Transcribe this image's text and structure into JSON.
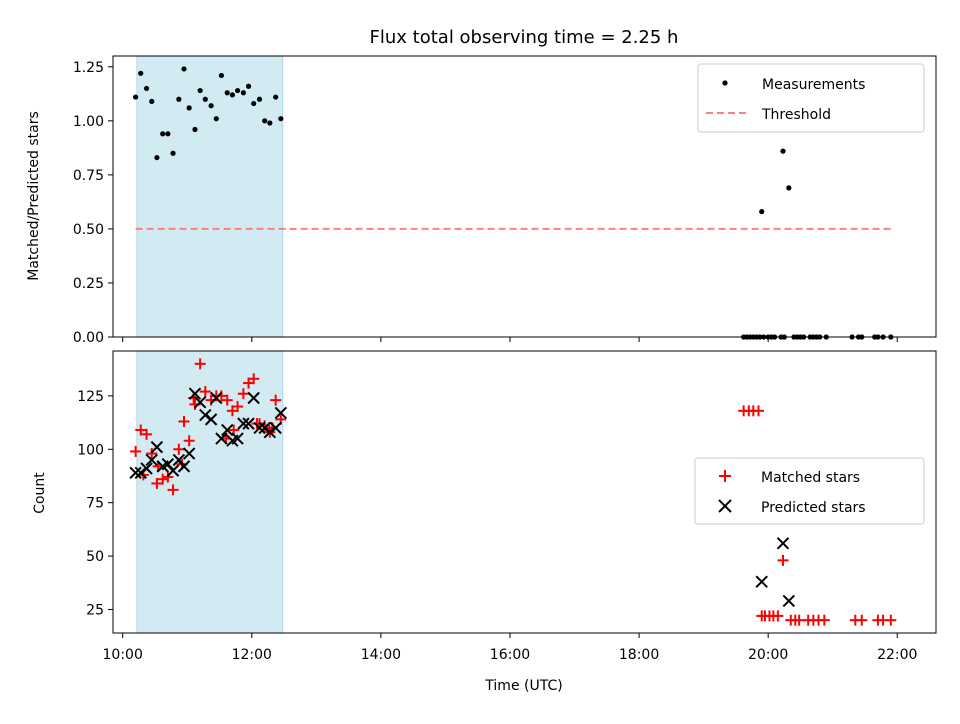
{
  "chart_data": [
    {
      "type": "scatter",
      "title": "Flux total observing time = 2.25 h",
      "xlabel": "",
      "ylabel": "Matched/Predicted stars",
      "ylim": [
        0,
        1.3
      ],
      "yticks": [
        "0.00",
        "0.25",
        "0.50",
        "0.75",
        "1.00",
        "1.25"
      ],
      "ytick_values": [
        0,
        0.25,
        0.5,
        0.75,
        1.0,
        1.25
      ],
      "xlim_hours": [
        9.85,
        22.6
      ],
      "shaded_span_hours": [
        10.22,
        12.48
      ],
      "shade_color": "#add8e6",
      "legend_position": "upper right",
      "series": [
        {
          "name": "Measurements",
          "marker": "dot",
          "color": "#000000",
          "x_hours": [
            10.2,
            10.28,
            10.37,
            10.45,
            10.53,
            10.62,
            10.7,
            10.78,
            10.87,
            10.95,
            11.03,
            11.12,
            11.2,
            11.28,
            11.37,
            11.45,
            11.53,
            11.62,
            11.7,
            11.78,
            11.87,
            11.95,
            12.03,
            12.12,
            12.2,
            12.28,
            12.37,
            12.45,
            19.9,
            20.23,
            20.32,
            19.62,
            19.67,
            19.72,
            19.77,
            19.82,
            19.87,
            19.93,
            20.0,
            20.05,
            20.1,
            20.2,
            20.25,
            20.4,
            20.45,
            20.5,
            20.55,
            20.65,
            20.7,
            20.75,
            20.8,
            20.9,
            21.3,
            21.4,
            21.45,
            21.65,
            21.7,
            21.78,
            21.9
          ],
          "y": [
            1.11,
            1.22,
            1.15,
            1.09,
            0.83,
            0.94,
            0.94,
            0.85,
            1.1,
            1.24,
            1.06,
            0.96,
            1.14,
            1.1,
            1.07,
            1.01,
            1.21,
            1.13,
            1.12,
            1.14,
            1.13,
            1.16,
            1.08,
            1.1,
            1.0,
            0.99,
            1.11,
            1.01,
            0.58,
            0.86,
            0.69,
            0,
            0,
            0,
            0,
            0,
            0,
            0,
            0,
            0,
            0,
            0,
            0,
            0,
            0,
            0,
            0,
            0,
            0,
            0,
            0,
            0,
            0,
            0,
            0,
            0,
            0,
            0,
            0
          ]
        },
        {
          "name": "Threshold",
          "line": "dashed",
          "color": "#ff7f7f",
          "x_hours": [
            10.2,
            21.9
          ],
          "y": [
            0.5,
            0.5
          ]
        }
      ]
    },
    {
      "type": "scatter",
      "title": "",
      "xlabel": "Time (UTC)",
      "ylabel": "Count",
      "ylim": [
        14,
        146
      ],
      "yticks": [
        "25",
        "50",
        "75",
        "100",
        "125"
      ],
      "ytick_values": [
        25,
        50,
        75,
        100,
        125
      ],
      "xticks": [
        "10:00",
        "12:00",
        "14:00",
        "16:00",
        "18:00",
        "20:00",
        "22:00"
      ],
      "xtick_hours": [
        10,
        12,
        14,
        16,
        18,
        20,
        22
      ],
      "xlim_hours": [
        9.85,
        22.6
      ],
      "shaded_span_hours": [
        10.22,
        12.48
      ],
      "shade_color": "#add8e6",
      "legend_position": "center right",
      "series": [
        {
          "name": "Matched stars",
          "marker": "plus",
          "color": "#ff0000",
          "x_hours": [
            10.2,
            10.28,
            10.37,
            10.45,
            10.53,
            10.62,
            10.7,
            10.78,
            10.87,
            10.95,
            11.03,
            11.12,
            11.2,
            11.28,
            11.37,
            11.45,
            11.53,
            11.62,
            11.7,
            11.78,
            11.87,
            11.95,
            12.03,
            12.12,
            12.2,
            12.28,
            12.37,
            12.45,
            10.32,
            10.55,
            10.92,
            11.1,
            11.6,
            11.72,
            12.08,
            12.32,
            19.62,
            19.7,
            19.77,
            19.85,
            19.9,
            19.95,
            20.02,
            20.08,
            20.15,
            20.23,
            20.35,
            20.42,
            20.48,
            20.62,
            20.7,
            20.78,
            20.87,
            21.35,
            21.45,
            21.7,
            21.78,
            21.9
          ],
          "y": [
            99,
            109,
            107,
            98,
            84,
            86,
            87,
            81,
            100,
            113,
            104,
            121,
            140,
            127,
            123,
            125,
            125,
            123,
            118,
            120,
            126,
            131,
            133,
            112,
            111,
            108,
            123,
            114,
            88,
            92,
            93,
            124,
            105,
            109,
            112,
            110,
            118,
            118,
            118,
            118,
            22,
            22,
            22,
            22,
            22,
            48,
            20,
            20,
            20,
            20,
            20,
            20,
            20,
            20,
            20,
            20,
            20,
            20
          ]
        },
        {
          "name": "Predicted stars",
          "marker": "x",
          "color": "#000000",
          "x_hours": [
            10.2,
            10.28,
            10.37,
            10.45,
            10.53,
            10.62,
            10.7,
            10.78,
            10.87,
            10.95,
            11.03,
            11.12,
            11.2,
            11.28,
            11.37,
            11.45,
            11.53,
            11.62,
            11.7,
            11.78,
            11.87,
            11.95,
            12.03,
            12.12,
            12.2,
            12.28,
            12.37,
            12.45,
            19.9,
            20.23,
            20.32
          ],
          "y": [
            89,
            89,
            91,
            95,
            101,
            92,
            93,
            90,
            95,
            92,
            98,
            126,
            122,
            116,
            114,
            124,
            105,
            109,
            104,
            105,
            112,
            112,
            124,
            110,
            110,
            108,
            110,
            117,
            38,
            56,
            29
          ]
        }
      ]
    }
  ]
}
